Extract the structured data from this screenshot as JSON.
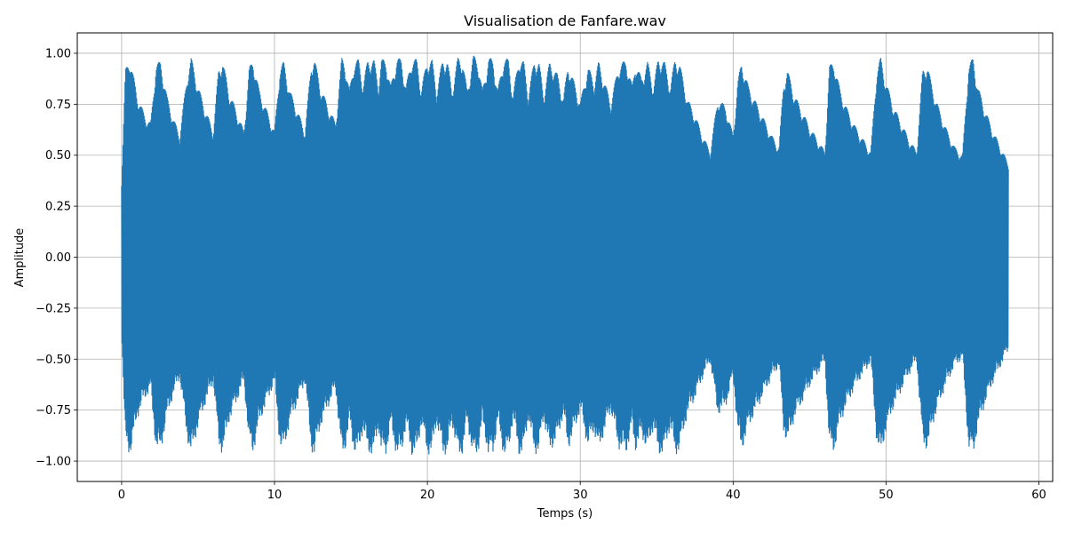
{
  "chart_data": {
    "type": "line",
    "title": "Visualisation de Fanfare.wav",
    "xlabel": "Temps (s)",
    "ylabel": "Amplitude",
    "xlim": [
      -2.9,
      60.9
    ],
    "ylim": [
      -1.1,
      1.1
    ],
    "xticks": [
      0,
      10,
      20,
      30,
      40,
      50,
      60
    ],
    "xtick_labels": [
      "0",
      "10",
      "20",
      "30",
      "40",
      "50",
      "60"
    ],
    "yticks": [
      1.0,
      0.75,
      0.5,
      0.25,
      0.0,
      -0.25,
      -0.5,
      -0.75,
      -1.0
    ],
    "ytick_labels": [
      "1.00",
      "0.75",
      "0.50",
      "0.25",
      "0.00",
      "−0.25",
      "−0.50",
      "−0.75",
      "−1.00"
    ],
    "grid": true,
    "series_color": "#1f77b4",
    "duration": 58.0,
    "series": [
      {
        "envelope_time": [
          0.0,
          0.25,
          0.55,
          1.0,
          1.5,
          1.9,
          2.25,
          2.55,
          3.0,
          3.4,
          3.8,
          4.3,
          4.55,
          5.0,
          5.5,
          6.0,
          6.35,
          6.6,
          7.0,
          7.5,
          8.0,
          8.35,
          8.6,
          9.0,
          9.5,
          10.0,
          10.35,
          10.6,
          11.0,
          11.5,
          12.0,
          12.4,
          12.6,
          13.0,
          13.5,
          14.0,
          14.4,
          14.6,
          14.9,
          15.2,
          15.5,
          15.8,
          16.1,
          16.5,
          16.8,
          17.0,
          17.3,
          17.6,
          18.0,
          18.3,
          18.6,
          19.0,
          19.3,
          19.6,
          20.0,
          20.3,
          20.6,
          21.0,
          21.3,
          21.6,
          22.0,
          22.3,
          22.6,
          23.0,
          23.3,
          23.6,
          24.0,
          24.3,
          24.6,
          25.0,
          25.3,
          25.6,
          26.0,
          26.3,
          26.6,
          27.0,
          27.3,
          27.6,
          28.0,
          28.5,
          28.9,
          29.2,
          29.6,
          30.0,
          30.5,
          30.9,
          31.2,
          31.6,
          32.0,
          32.5,
          33.0,
          33.4,
          33.6,
          34.0,
          34.4,
          34.8,
          35.1,
          35.5,
          35.9,
          36.2,
          36.5,
          37.0,
          37.5,
          38.0,
          38.5,
          39.0,
          39.5,
          40.0,
          40.3,
          40.55,
          41.0,
          41.5,
          42.0,
          42.5,
          43.0,
          43.3,
          43.55,
          44.0,
          44.5,
          45.0,
          45.5,
          46.0,
          46.3,
          46.6,
          47.0,
          47.5,
          48.0,
          48.5,
          49.0,
          49.4,
          49.65,
          50.0,
          50.5,
          51.0,
          51.5,
          52.0,
          52.4,
          52.7,
          53.0,
          53.5,
          54.0,
          54.5,
          55.0,
          55.4,
          55.7,
          56.0,
          56.5,
          57.0,
          57.5,
          58.0
        ],
        "envelope_amplitude": [
          0.38,
          0.92,
          0.98,
          0.8,
          0.7,
          0.66,
          0.95,
          0.96,
          0.78,
          0.68,
          0.6,
          0.9,
          0.98,
          0.84,
          0.72,
          0.62,
          0.93,
          0.97,
          0.82,
          0.72,
          0.62,
          0.93,
          0.97,
          0.82,
          0.72,
          0.62,
          0.93,
          0.96,
          0.82,
          0.72,
          0.62,
          0.95,
          0.98,
          0.84,
          0.74,
          0.66,
          0.98,
          0.96,
          0.82,
          0.96,
          0.97,
          0.85,
          0.97,
          0.97,
          0.85,
          0.97,
          0.97,
          0.84,
          0.98,
          0.97,
          0.84,
          0.98,
          0.97,
          0.83,
          0.97,
          0.97,
          0.82,
          0.97,
          0.97,
          0.82,
          0.98,
          0.97,
          0.82,
          0.99,
          0.97,
          0.82,
          0.98,
          0.97,
          0.82,
          0.98,
          0.97,
          0.8,
          0.98,
          0.96,
          0.8,
          0.97,
          0.96,
          0.8,
          0.96,
          0.9,
          0.78,
          0.95,
          0.86,
          0.76,
          0.94,
          0.86,
          0.96,
          0.86,
          0.76,
          0.94,
          0.97,
          0.84,
          0.96,
          0.88,
          0.96,
          0.84,
          0.98,
          0.96,
          0.84,
          0.98,
          0.95,
          0.78,
          0.7,
          0.6,
          0.52,
          0.78,
          0.74,
          0.6,
          0.86,
          0.96,
          0.84,
          0.76,
          0.68,
          0.6,
          0.54,
          0.86,
          0.92,
          0.8,
          0.72,
          0.64,
          0.58,
          0.52,
          0.94,
          0.96,
          0.82,
          0.72,
          0.64,
          0.58,
          0.52,
          0.92,
          0.98,
          0.86,
          0.74,
          0.66,
          0.58,
          0.52,
          0.92,
          0.95,
          0.84,
          0.72,
          0.62,
          0.54,
          0.5,
          0.94,
          0.98,
          0.84,
          0.72,
          0.62,
          0.54,
          0.46
        ]
      }
    ]
  }
}
